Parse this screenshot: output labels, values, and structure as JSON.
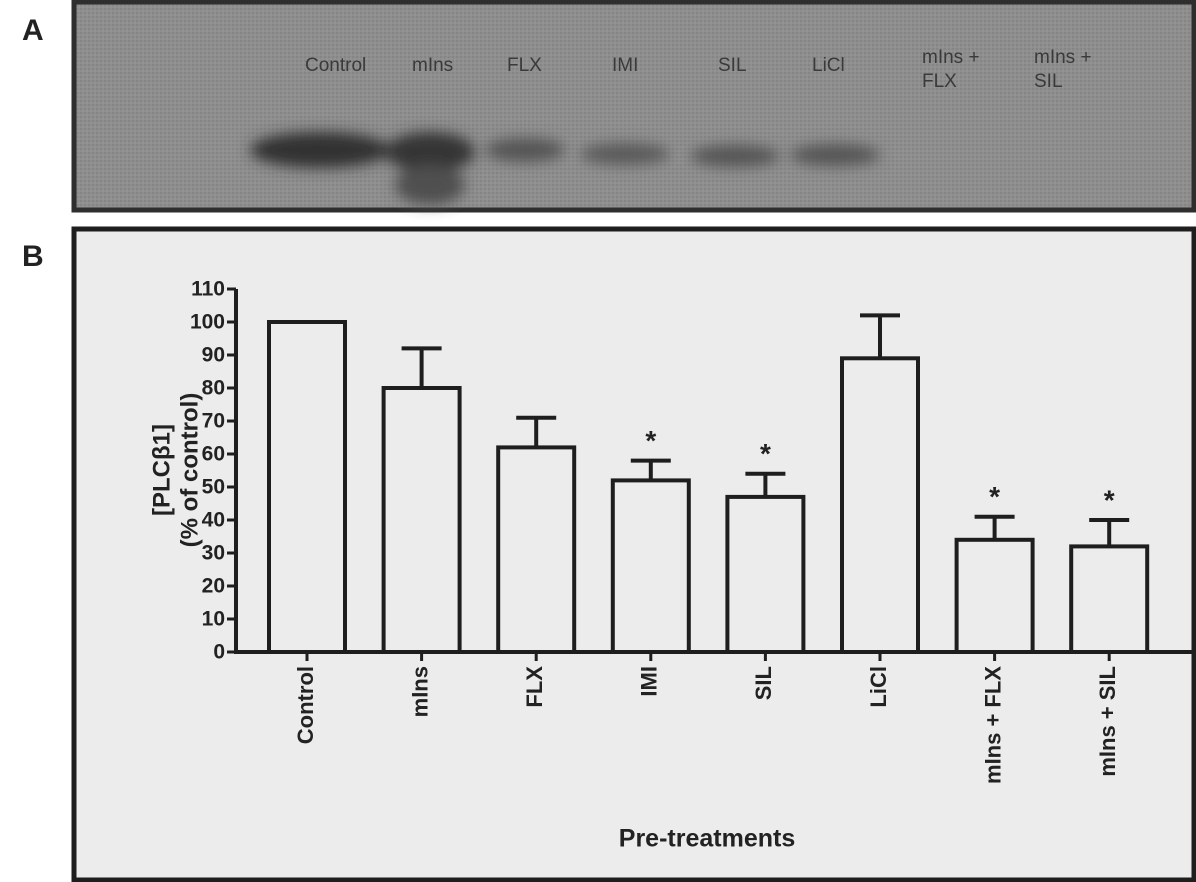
{
  "panel_labels": [
    "A",
    "B"
  ],
  "blot_lanes": [
    "Control",
    "mIns",
    "FLX",
    "IMI",
    "SIL",
    "LiCl",
    [
      "mIns +",
      "FLX"
    ],
    [
      "mIns +",
      "SIL"
    ]
  ],
  "chart_data": {
    "type": "bar",
    "ylabel": [
      "[PLCβ1]",
      "(% of control)"
    ],
    "xlabel": "Pre-treatments",
    "categories": [
      "Control",
      "mIns",
      "FLX",
      "IMI",
      "SIL",
      "LiCl",
      "mIns + FLX",
      "mIns + SIL"
    ],
    "values": [
      100,
      80,
      62,
      52,
      47,
      89,
      34,
      32
    ],
    "errors": [
      0,
      12,
      9,
      6,
      7,
      13,
      7,
      8
    ],
    "significance": [
      null,
      null,
      null,
      "*",
      "*",
      null,
      "*",
      "*"
    ],
    "color": "#ececec",
    "ylim": [
      0,
      110
    ],
    "yticks": [
      0,
      10,
      20,
      30,
      40,
      50,
      60,
      70,
      80,
      90,
      100,
      110
    ],
    "grid": false
  }
}
